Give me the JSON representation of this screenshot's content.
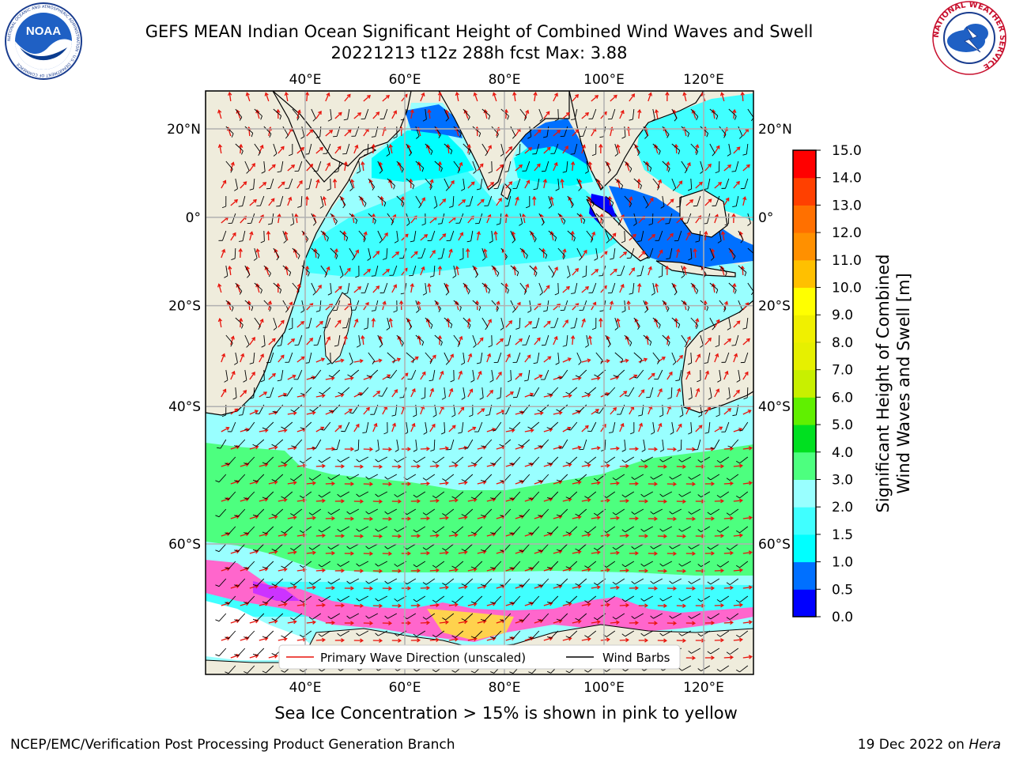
{
  "title": {
    "line1": "GEFS MEAN Indian Ocean Significant Height of Combined Wind Waves and Swell",
    "line2": "20221213 t12z 288h fcst   Max: 3.88"
  },
  "logos": {
    "left": "NOAA",
    "left_ring": "NATIONAL OCEANIC AND ATMOSPHERIC ADMINISTRATION · U.S. DEPARTMENT OF COMMERCE",
    "right_ring": "NATIONAL WEATHER SERVICE"
  },
  "map": {
    "lon_range": [
      20,
      130
    ],
    "lat_range": [
      -72,
      28
    ],
    "lon_ticks": [
      40,
      60,
      80,
      100,
      120
    ],
    "lon_tick_labels": [
      "40°E",
      "60°E",
      "80°E",
      "100°E",
      "120°E"
    ],
    "lat_ticks": [
      20,
      0,
      -20,
      -40,
      -60
    ],
    "lat_tick_labels": [
      "20°N",
      "0°",
      "20°S",
      "40°S",
      "60°S"
    ],
    "grid": true,
    "colors": {
      "land": "#efecdc",
      "coast": "#000000",
      "wave_arrow": "#e8140c",
      "wind_barb": "#000000",
      "grid": "#b0b0b0"
    }
  },
  "legend": {
    "placement": "bottom-center",
    "items": [
      {
        "label": "Primary Wave Direction (unscaled)",
        "color": "#e8140c"
      },
      {
        "label": "Wind Barbs",
        "color": "#000000"
      }
    ]
  },
  "colorbar": {
    "label_line1": "Significant Height of Combined",
    "label_line2": "Wind Waves and Swell [m]",
    "min": 0,
    "max": 15,
    "tick_values": [
      0,
      0.5,
      1,
      1.5,
      2,
      3,
      4,
      5,
      6,
      7,
      8,
      9,
      10,
      11,
      12,
      13,
      14,
      15
    ],
    "tick_labels": [
      "0.0",
      "0.5",
      "1.0",
      "1.5",
      "2.0",
      "3.0",
      "4.0",
      "5.0",
      "6.0",
      "7.0",
      "8.0",
      "9.0",
      "10.0",
      "11.0",
      "12.0",
      "13.0",
      "14.0",
      "15.0"
    ],
    "colors": [
      "#0000ff",
      "#0070ff",
      "#00ffff",
      "#40ffff",
      "#99ffff",
      "#4dff7f",
      "#00e020",
      "#60f000",
      "#c8f000",
      "#e6f000",
      "#f0f000",
      "#ffff00",
      "#ffc000",
      "#ff9000",
      "#ff7000",
      "#ff4000",
      "#ff0000"
    ]
  },
  "footer": {
    "note": "Sea Ice Concentration > 15% is shown in pink to yellow",
    "credit_left": "NCEP/EMC/Verification Post Processing Product Generation Branch",
    "credit_right_prefix": "19 Dec 2022 on ",
    "credit_right_host": "Hera"
  }
}
